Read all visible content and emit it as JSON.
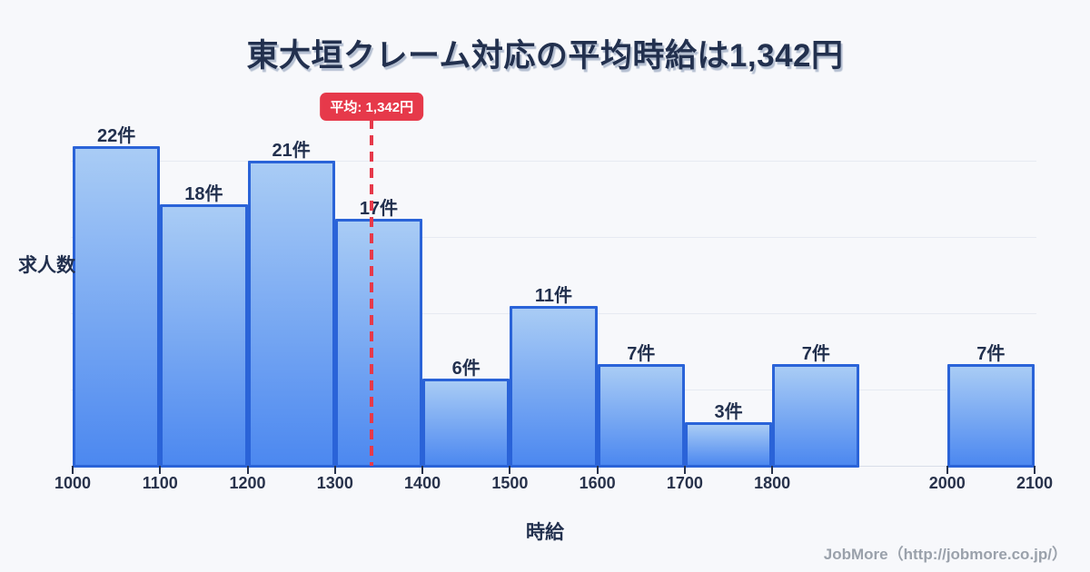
{
  "title": "東大垣クレーム対応の平均時給は1,342円",
  "footer": "JobMore（http://jobmore.co.jp/）",
  "chart_data": {
    "type": "bar",
    "title": "東大垣クレーム対応の平均時給は1,342円",
    "xlabel": "時給",
    "ylabel": "求人数",
    "unit_suffix": "件",
    "bins": [
      {
        "from": 1000,
        "to": 1100,
        "count": 22,
        "label": "22件"
      },
      {
        "from": 1100,
        "to": 1200,
        "count": 18,
        "label": "18件"
      },
      {
        "from": 1200,
        "to": 1300,
        "count": 21,
        "label": "21件"
      },
      {
        "from": 1300,
        "to": 1400,
        "count": 17,
        "label": "17件"
      },
      {
        "from": 1400,
        "to": 1500,
        "count": 6,
        "label": "6件"
      },
      {
        "from": 1500,
        "to": 1600,
        "count": 11,
        "label": "11件"
      },
      {
        "from": 1600,
        "to": 1700,
        "count": 7,
        "label": "7件"
      },
      {
        "from": 1700,
        "to": 1800,
        "count": 3,
        "label": "3件"
      },
      {
        "from": 1800,
        "to": 1900,
        "count": 7,
        "label": "7件"
      },
      {
        "from": 2000,
        "to": 2100,
        "count": 7,
        "label": "7件"
      }
    ],
    "x_ticks": [
      1000,
      1100,
      1200,
      1300,
      1400,
      1500,
      1600,
      1700,
      1800,
      2000,
      2100
    ],
    "x_domain": [
      1000,
      2100
    ],
    "ylim": [
      0,
      26
    ],
    "grid": "horizontal",
    "average": {
      "value": 1342,
      "label": "平均: 1,342円"
    },
    "colors": {
      "background": "#f7f8fb",
      "bar_top": "#a9ccf5",
      "bar_bottom": "#4c88f0",
      "bar_border": "#2a63d8",
      "gridline": "#e6eaf2",
      "axis_line": "#d8dee8",
      "accent_red": "#e6394a",
      "title_text": "#22304e",
      "tick_text": "#28324b",
      "footer_text": "#9aa1ab"
    }
  }
}
